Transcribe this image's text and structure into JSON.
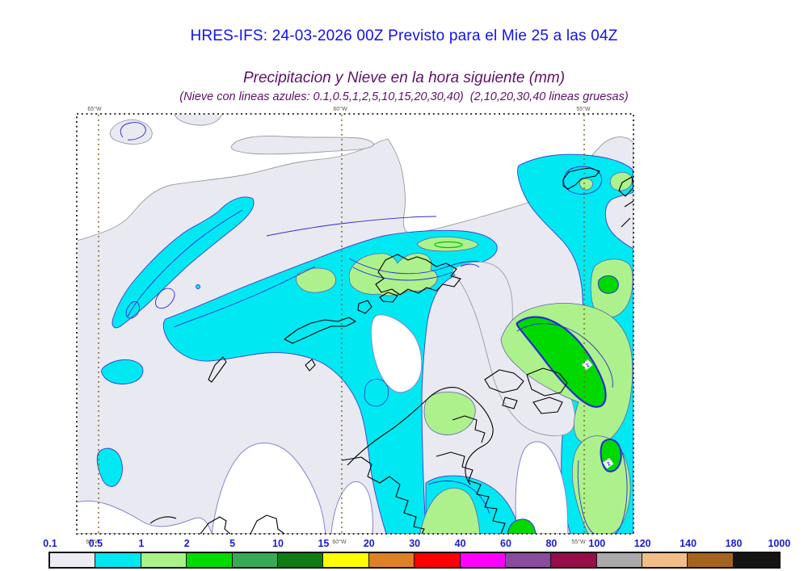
{
  "header": {
    "title": "HRES-IFS: 24-03-2026 00Z Previsto para el Mie 25 a las 04Z",
    "subtitle": "Precipitacion y Nieve en la hora siguiente (mm)",
    "note": "(Nieve con lineas azules: 0.1,0.5,1,2,5,10,15,20,30,40)  (2,10,20,30,40 lineas gruesas)"
  },
  "map": {
    "lon_labels": [
      "65°W",
      "60°W",
      "55°W"
    ],
    "contour_labels": [
      "2",
      "2"
    ]
  },
  "colorbar": {
    "labels": [
      "0.1",
      "0.5",
      "1",
      "2",
      "5",
      "10",
      "15",
      "20",
      "30",
      "40",
      "60",
      "80",
      "100",
      "120",
      "140",
      "180",
      "1000"
    ],
    "colors": [
      "#ececf4",
      "#00e7f0",
      "#a9f287",
      "#00db00",
      "#38aa55",
      "#0e7c12",
      "#ffff00",
      "#de8126",
      "#fe0000",
      "#ff00fe",
      "#8a4b9e",
      "#960d47",
      "#a9a9a9",
      "#f2be88",
      "#a5641e",
      "#141414"
    ]
  },
  "palette": {
    "titlecol": "#1212ee",
    "subcol": "#5e1168",
    "cbtext": "#1c1ccf",
    "loncol": "#5a5248",
    "gray": "#e9e9f1",
    "grayline": "#9a9aa2",
    "cyan": "#00e9f2",
    "cyanline": "#3c3cd0",
    "lgreen": "#adf18c",
    "lgreenline": "#6060b0",
    "bgreen": "#00d900",
    "blue": "#2b2bd2",
    "slate": "#8585d2",
    "coast": "#000000",
    "grid": "#7a651c",
    "border": "#1a1a1a"
  }
}
